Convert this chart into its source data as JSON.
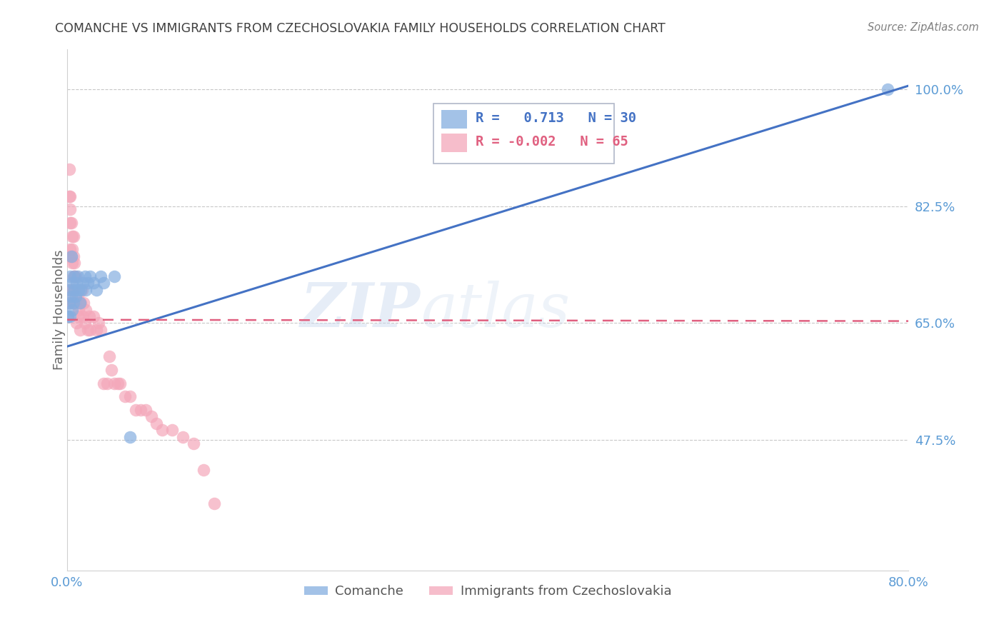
{
  "title": "COMANCHE VS IMMIGRANTS FROM CZECHOSLOVAKIA FAMILY HOUSEHOLDS CORRELATION CHART",
  "source": "Source: ZipAtlas.com",
  "ylabel": "Family Households",
  "legend_blue_R": "0.713",
  "legend_blue_N": "30",
  "legend_pink_R": "-0.002",
  "legend_pink_N": "65",
  "legend_blue_label": "Comanche",
  "legend_pink_label": "Immigrants from Czechoslovakia",
  "watermark_text": "ZIP",
  "watermark_text2": "atlas",
  "blue_color": "#85aee0",
  "pink_color": "#f4a7ba",
  "blue_line_color": "#4472c4",
  "pink_line_color": "#e06080",
  "axis_color": "#5b9bd5",
  "grid_color": "#c8c8c8",
  "title_color": "#404040",
  "source_color": "#808080",
  "xlim": [
    0.0,
    0.8
  ],
  "ylim": [
    0.28,
    1.06
  ],
  "yticks": [
    0.475,
    0.65,
    0.825,
    1.0
  ],
  "ytick_labels": [
    "47.5%",
    "65.0%",
    "82.5%",
    "100.0%"
  ],
  "xtick_labels": [
    "0.0%",
    "80.0%"
  ],
  "xtick_vals": [
    0.0,
    0.8
  ],
  "blue_x": [
    0.001,
    0.002,
    0.002,
    0.003,
    0.003,
    0.004,
    0.004,
    0.005,
    0.005,
    0.006,
    0.007,
    0.007,
    0.008,
    0.009,
    0.01,
    0.011,
    0.012,
    0.013,
    0.015,
    0.017,
    0.018,
    0.02,
    0.022,
    0.025,
    0.028,
    0.032,
    0.035,
    0.045,
    0.06,
    0.78
  ],
  "blue_y": [
    0.66,
    0.68,
    0.7,
    0.72,
    0.66,
    0.75,
    0.69,
    0.67,
    0.71,
    0.68,
    0.72,
    0.7,
    0.69,
    0.71,
    0.72,
    0.7,
    0.68,
    0.7,
    0.71,
    0.72,
    0.7,
    0.71,
    0.72,
    0.71,
    0.7,
    0.72,
    0.71,
    0.72,
    0.48,
    1.0
  ],
  "pink_x": [
    0.001,
    0.001,
    0.001,
    0.002,
    0.002,
    0.002,
    0.003,
    0.003,
    0.003,
    0.003,
    0.003,
    0.004,
    0.004,
    0.004,
    0.005,
    0.005,
    0.005,
    0.005,
    0.006,
    0.006,
    0.006,
    0.007,
    0.007,
    0.007,
    0.008,
    0.008,
    0.009,
    0.01,
    0.01,
    0.011,
    0.012,
    0.012,
    0.013,
    0.014,
    0.015,
    0.016,
    0.017,
    0.018,
    0.02,
    0.021,
    0.022,
    0.025,
    0.028,
    0.03,
    0.032,
    0.035,
    0.038,
    0.04,
    0.042,
    0.045,
    0.048,
    0.05,
    0.055,
    0.06,
    0.065,
    0.07,
    0.075,
    0.08,
    0.085,
    0.09,
    0.1,
    0.11,
    0.12,
    0.13,
    0.14
  ],
  "pink_y": [
    0.66,
    0.68,
    0.7,
    0.88,
    0.84,
    0.75,
    0.84,
    0.82,
    0.8,
    0.76,
    0.68,
    0.8,
    0.75,
    0.7,
    0.78,
    0.76,
    0.74,
    0.7,
    0.78,
    0.75,
    0.72,
    0.74,
    0.72,
    0.68,
    0.72,
    0.68,
    0.65,
    0.69,
    0.66,
    0.67,
    0.68,
    0.64,
    0.68,
    0.7,
    0.66,
    0.68,
    0.65,
    0.67,
    0.64,
    0.66,
    0.64,
    0.66,
    0.64,
    0.65,
    0.64,
    0.56,
    0.56,
    0.6,
    0.58,
    0.56,
    0.56,
    0.56,
    0.54,
    0.54,
    0.52,
    0.52,
    0.52,
    0.51,
    0.5,
    0.49,
    0.49,
    0.48,
    0.47,
    0.43,
    0.38
  ],
  "blue_line_x0": 0.0,
  "blue_line_y0": 0.615,
  "blue_line_x1": 0.8,
  "blue_line_y1": 1.005,
  "pink_line_x0": 0.0,
  "pink_line_y0": 0.655,
  "pink_line_x1": 0.8,
  "pink_line_y1": 0.653
}
